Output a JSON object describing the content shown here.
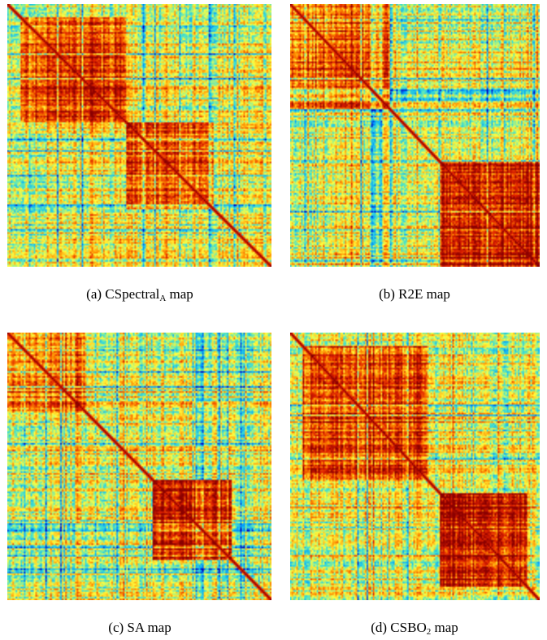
{
  "figure": {
    "panels": [
      {
        "caption_prefix": "(a) CSpectral",
        "caption_sub": "A",
        "caption_suffix": " map",
        "seed": 11,
        "blocks": [
          {
            "from": 0.05,
            "to": 0.45,
            "strength": 0.55
          },
          {
            "from": 0.45,
            "to": 0.78,
            "strength": 0.45
          }
        ]
      },
      {
        "caption_prefix": "(b) R2E map",
        "caption_sub": "",
        "caption_suffix": "",
        "seed": 23,
        "blocks": [
          {
            "from": 0.0,
            "to": 0.4,
            "strength": 0.4
          },
          {
            "from": 0.6,
            "to": 1.0,
            "strength": 0.65
          }
        ]
      },
      {
        "caption_prefix": "(c) SA map",
        "caption_sub": "",
        "caption_suffix": "",
        "seed": 37,
        "blocks": [
          {
            "from": 0.0,
            "to": 0.3,
            "strength": 0.4
          },
          {
            "from": 0.55,
            "to": 0.85,
            "strength": 0.7
          }
        ]
      },
      {
        "caption_prefix": "(d) CSBO",
        "caption_sub": "2",
        "caption_suffix": " map",
        "seed": 53,
        "blocks": [
          {
            "from": 0.05,
            "to": 0.55,
            "strength": 0.5
          },
          {
            "from": 0.6,
            "to": 0.95,
            "strength": 0.7
          }
        ]
      }
    ],
    "colormap": [
      "#0000c0",
      "#00a0ff",
      "#40e0d0",
      "#ffff40",
      "#ff9000",
      "#e02000",
      "#8b0000"
    ]
  },
  "chart_data": [
    {
      "type": "heatmap",
      "title": "",
      "diagonal_value": 1.0,
      "blocks": [
        [
          0.05,
          0.45
        ],
        [
          0.45,
          0.78
        ]
      ]
    },
    {
      "type": "heatmap",
      "title": "",
      "diagonal_value": 1.0,
      "blocks": [
        [
          0.0,
          0.4
        ],
        [
          0.6,
          1.0
        ]
      ]
    },
    {
      "type": "heatmap",
      "title": "",
      "diagonal_value": 1.0,
      "blocks": [
        [
          0.0,
          0.3
        ],
        [
          0.55,
          0.85
        ]
      ]
    },
    {
      "type": "heatmap",
      "title": "",
      "diagonal_value": 1.0,
      "blocks": [
        [
          0.05,
          0.55
        ],
        [
          0.6,
          0.95
        ]
      ]
    }
  ]
}
